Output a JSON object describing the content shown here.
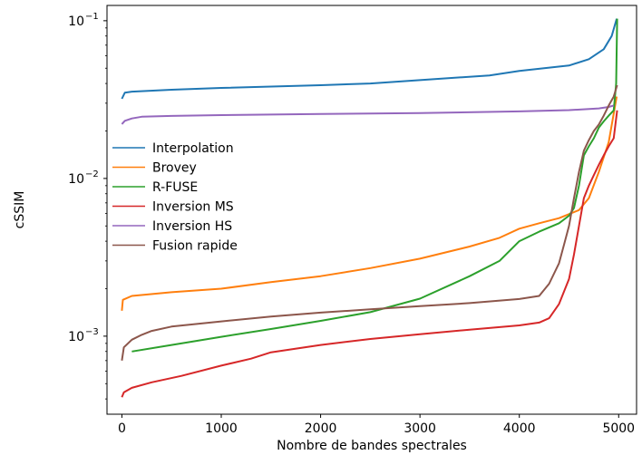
{
  "chart_data": {
    "type": "line",
    "xlabel": "Nombre de bandes spectrales",
    "ylabel": "cSSIM",
    "xlim": [
      -150,
      5180
    ],
    "ylim": [
      0.00032,
      0.125
    ],
    "yscale": "log",
    "x_ticks": [
      0,
      1000,
      2000,
      3000,
      4000,
      5000
    ],
    "x_tick_labels": [
      "0",
      "1000",
      "2000",
      "3000",
      "4000",
      "5000"
    ],
    "y_ticks": [
      {
        "value": 0.1,
        "base": "10",
        "exp": "−1"
      },
      {
        "value": 0.01,
        "base": "10",
        "exp": "−2"
      },
      {
        "value": 0.001,
        "base": "10",
        "exp": "−3"
      }
    ],
    "grid": false,
    "legend_position": "center-left",
    "series": [
      {
        "name": "Interpolation",
        "color": "#1f77b4",
        "x": [
          0,
          30,
          100,
          500,
          1000,
          2000,
          2500,
          3000,
          3700,
          4000,
          4500,
          4700,
          4850,
          4930,
          4980
        ],
        "y": [
          0.032,
          0.035,
          0.0355,
          0.0365,
          0.0375,
          0.039,
          0.04,
          0.042,
          0.045,
          0.048,
          0.052,
          0.057,
          0.066,
          0.08,
          0.103
        ]
      },
      {
        "name": "Brovey",
        "color": "#ff7f0e",
        "x": [
          0,
          10,
          100,
          500,
          1000,
          1500,
          2000,
          2500,
          3000,
          3500,
          3800,
          4000,
          4200,
          4400,
          4600,
          4700,
          4800,
          4900,
          4960,
          4980
        ],
        "y": [
          0.00145,
          0.0017,
          0.0018,
          0.0019,
          0.002,
          0.0022,
          0.0024,
          0.0027,
          0.0031,
          0.0037,
          0.0042,
          0.0048,
          0.0052,
          0.0056,
          0.0063,
          0.0075,
          0.011,
          0.017,
          0.028,
          0.033
        ]
      },
      {
        "name": "R-FUSE",
        "color": "#2ca02c",
        "x": [
          100,
          500,
          1000,
          1500,
          2000,
          2500,
          3000,
          3500,
          3800,
          4000,
          4200,
          4400,
          4500,
          4550,
          4600,
          4650,
          4700,
          4750,
          4800,
          4850,
          4900,
          4950,
          4975,
          4985
        ],
        "y": [
          0.0008,
          0.00088,
          0.00099,
          0.00111,
          0.00125,
          0.00142,
          0.00173,
          0.0024,
          0.003,
          0.004,
          0.0046,
          0.0052,
          0.0058,
          0.0065,
          0.009,
          0.014,
          0.016,
          0.018,
          0.021,
          0.023,
          0.025,
          0.027,
          0.04,
          0.103
        ]
      },
      {
        "name": "Inversion MS",
        "color": "#d62728",
        "x": [
          0,
          20,
          100,
          300,
          600,
          1000,
          1300,
          1500,
          2000,
          2500,
          3000,
          3500,
          4000,
          4200,
          4300,
          4400,
          4500,
          4550,
          4600,
          4650,
          4700,
          4750,
          4800,
          4850,
          4900,
          4950,
          4985
        ],
        "y": [
          0.00041,
          0.00044,
          0.00047,
          0.00051,
          0.00056,
          0.00065,
          0.00072,
          0.00079,
          0.00088,
          0.00096,
          0.00103,
          0.0011,
          0.00117,
          0.00122,
          0.0013,
          0.0016,
          0.0023,
          0.0033,
          0.005,
          0.0075,
          0.009,
          0.0105,
          0.0122,
          0.014,
          0.016,
          0.018,
          0.027
        ]
      },
      {
        "name": "Inversion HS",
        "color": "#9467bd",
        "x": [
          0,
          30,
          100,
          200,
          500,
          1000,
          2000,
          3000,
          4000,
          4500,
          4800,
          4900,
          4950
        ],
        "y": [
          0.0221,
          0.0232,
          0.024,
          0.0246,
          0.0249,
          0.0252,
          0.0256,
          0.026,
          0.0266,
          0.0271,
          0.0278,
          0.0284,
          0.029
        ]
      },
      {
        "name": "Fusion rapide",
        "color": "#8c564b",
        "x": [
          0,
          20,
          100,
          200,
          300,
          500,
          1000,
          1500,
          2000,
          2500,
          3000,
          3500,
          4000,
          4200,
          4300,
          4400,
          4450,
          4500,
          4550,
          4600,
          4650,
          4700,
          4750,
          4800,
          4850,
          4900,
          4950,
          4985
        ],
        "y": [
          0.0007,
          0.00085,
          0.00095,
          0.00102,
          0.00108,
          0.00115,
          0.00124,
          0.00133,
          0.00141,
          0.00148,
          0.00155,
          0.00162,
          0.00172,
          0.0018,
          0.00215,
          0.0029,
          0.0038,
          0.005,
          0.0075,
          0.011,
          0.015,
          0.0175,
          0.02,
          0.022,
          0.025,
          0.029,
          0.033,
          0.039
        ]
      }
    ]
  }
}
